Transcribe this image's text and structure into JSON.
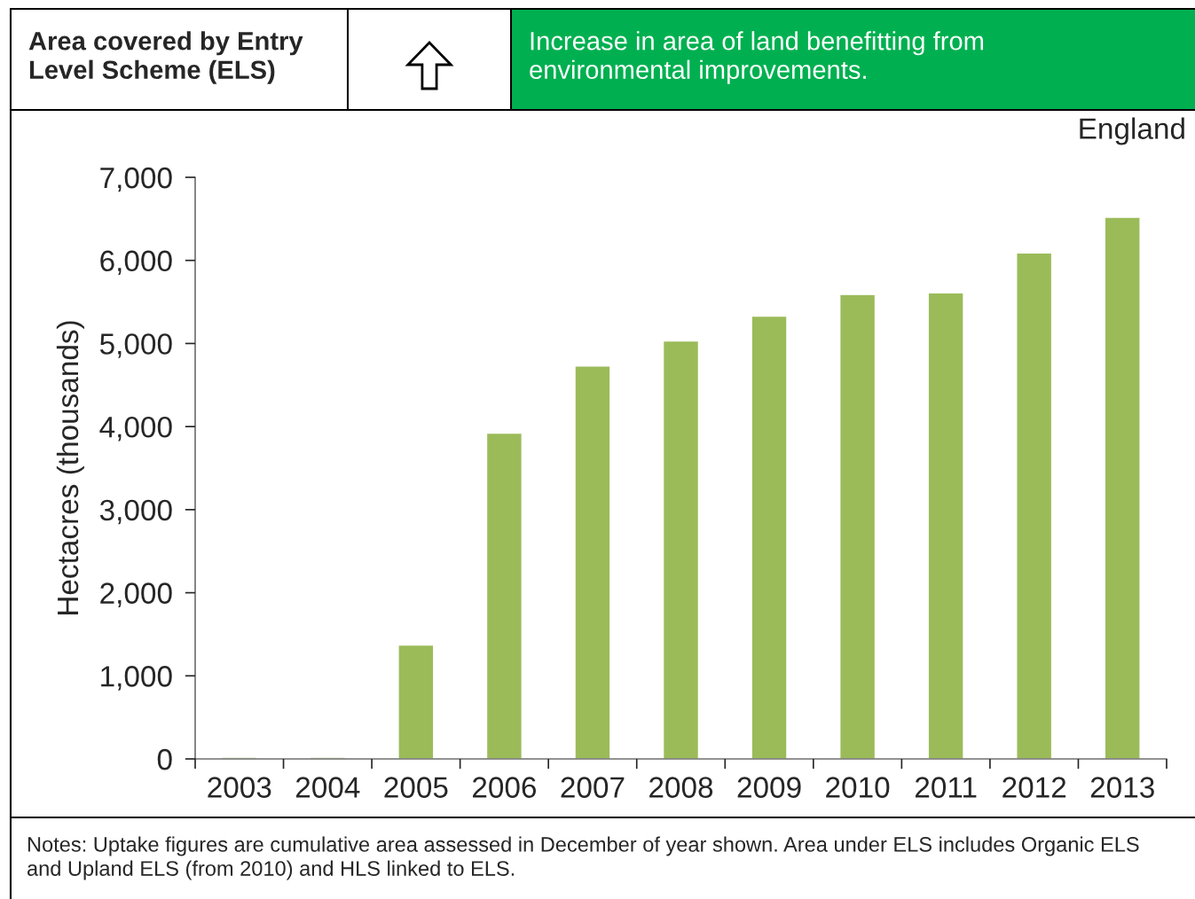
{
  "chart_data": {
    "type": "bar",
    "title": "Area covered by Entry Level Scheme (ELS)",
    "subtitle": "Increase in area of land benefitting from environmental improvements.",
    "ylabel": "Hectacres (thousands)",
    "categories": [
      "2003",
      "2004",
      "2005",
      "2006",
      "2007",
      "2008",
      "2009",
      "2010",
      "2011",
      "2012",
      "2013"
    ],
    "values": [
      20,
      20,
      1370,
      3920,
      4730,
      5030,
      5330,
      5590,
      5610,
      6090,
      6520
    ],
    "color": "#9bbb59",
    "ylim": [
      0,
      7000
    ],
    "yticks": [
      {
        "value": 0,
        "label": "0"
      },
      {
        "value": 1000,
        "label": "1,000"
      },
      {
        "value": 2000,
        "label": "2,000"
      },
      {
        "value": 3000,
        "label": "3,000"
      },
      {
        "value": 4000,
        "label": "4,000"
      },
      {
        "value": 5000,
        "label": "5,000"
      },
      {
        "value": 6000,
        "label": "6,000"
      },
      {
        "value": 7000,
        "label": "7,000"
      }
    ],
    "grid": false,
    "legend": false,
    "annotations": [
      "England",
      "Notes: Uptake figures are cumulative area assessed in December of year shown. Area under ELS includes Organic ELS and Upland ELS (from 2010) and HLS linked to ELS."
    ]
  }
}
